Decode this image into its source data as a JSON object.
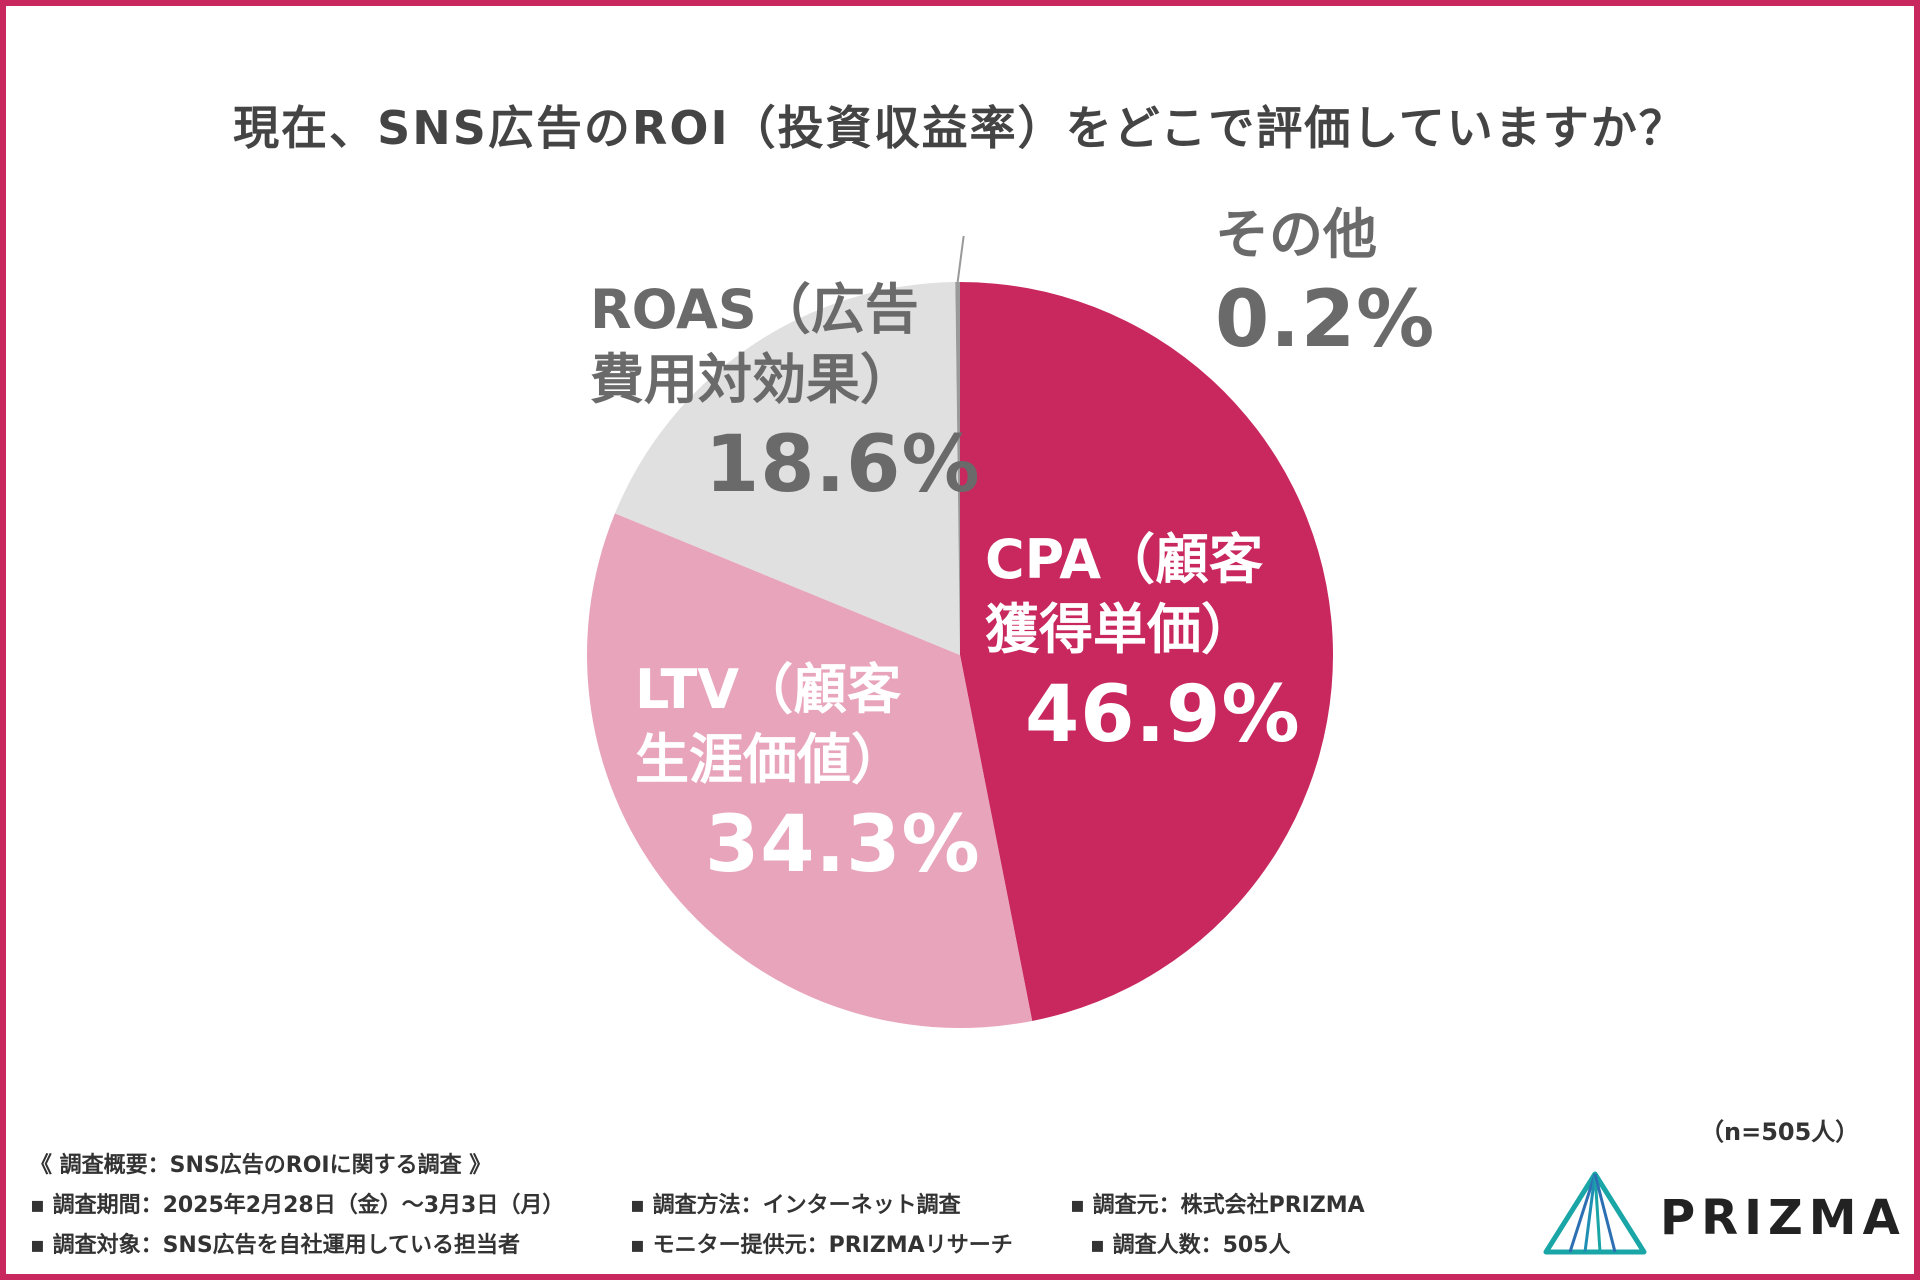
{
  "title": "現在、SNS広告のROI（投資収益率）をどこで評価していますか？",
  "chart_data": {
    "type": "pie",
    "slices": [
      {
        "name_line1": "CPA（顧客",
        "name_line2": "獲得単価）",
        "value": 46.9,
        "label": "46.9%",
        "color": "#c8285e"
      },
      {
        "name_line1": "LTV（顧客",
        "name_line2": "生涯価値）",
        "value": 34.3,
        "label": "34.3%",
        "color": "#e8a4ba"
      },
      {
        "name_line1": "ROAS（広告",
        "name_line2": "費用対効果）",
        "value": 18.6,
        "label": "18.6%",
        "color": "#e0e0e0"
      },
      {
        "name_line1": "その他",
        "name_line2": "",
        "value": 0.2,
        "label": "0.2%",
        "color": "#9a9a9a"
      }
    ]
  },
  "sample_size": "（n=505人）",
  "survey": {
    "heading": "《 調査概要：SNS広告のROIに関する調査 》",
    "period": "▪ 調査期間：2025年2月28日（金）〜3月3日（月）",
    "method": "▪ 調査方法：インターネット調査",
    "source": "▪ 調査元：株式会社PRIZMA",
    "target": "▪ 調査対象：SNS広告を自社運用している担当者",
    "monitor": "▪ モニター提供元：PRIZMAリサーチ",
    "respondents": "▪ 調査人数：505人"
  },
  "logo": {
    "name": "PRIZMA",
    "colors": [
      "#1aa6a6",
      "#2d6fb3"
    ]
  }
}
